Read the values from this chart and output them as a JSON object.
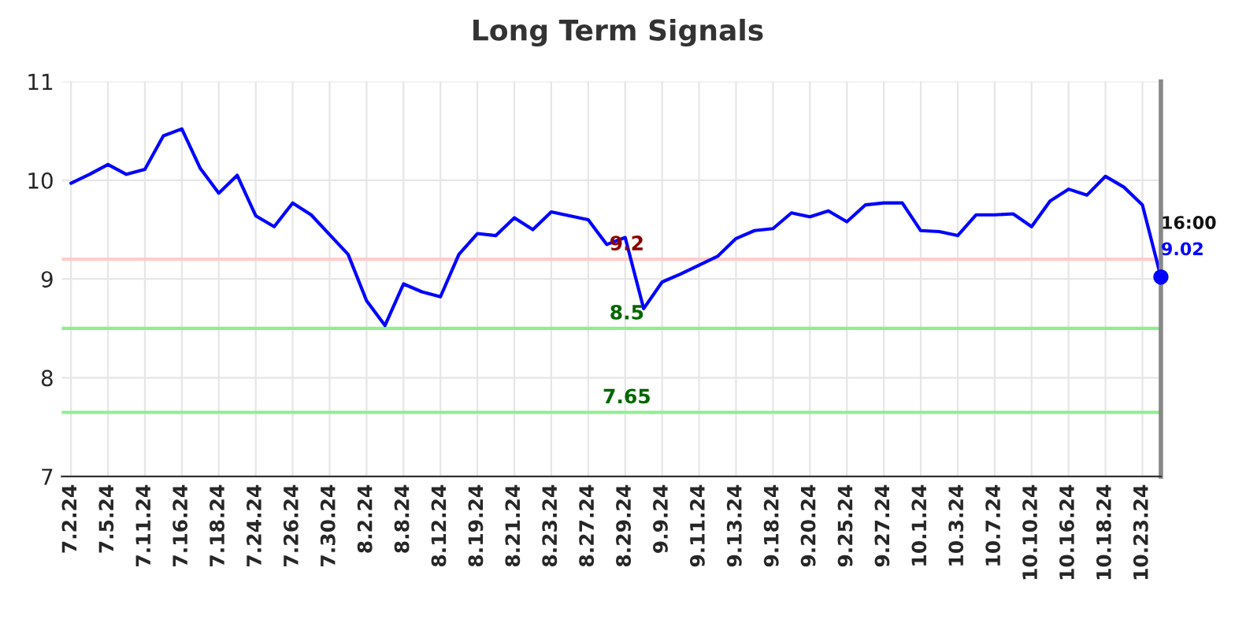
{
  "chart_data": {
    "type": "line",
    "title": "Long Term Signals",
    "categories": [
      "7.2.24",
      null,
      "7.5.24",
      null,
      "7.11.24",
      null,
      "7.16.24",
      null,
      "7.18.24",
      null,
      "7.24.24",
      null,
      "7.26.24",
      null,
      "7.30.24",
      null,
      "8.2.24",
      null,
      "8.8.24",
      null,
      "8.12.24",
      null,
      "8.19.24",
      null,
      "8.21.24",
      null,
      "8.23.24",
      null,
      "8.27.24",
      null,
      "8.29.24",
      null,
      "9.9.24",
      null,
      "9.11.24",
      null,
      "9.13.24",
      null,
      "9.18.24",
      null,
      "9.20.24",
      null,
      "9.25.24",
      null,
      "9.27.24",
      null,
      "10.1.24",
      null,
      "10.3.24",
      null,
      "10.7.24",
      null,
      "10.10.24",
      null,
      "10.16.24",
      null,
      "10.18.24",
      null,
      "10.23.24",
      null
    ],
    "series": [
      {
        "color": "#0000ff",
        "values": [
          9.97,
          10.06,
          10.16,
          10.06,
          10.11,
          10.45,
          10.52,
          10.12,
          9.87,
          10.05,
          9.64,
          9.53,
          9.77,
          9.65,
          9.45,
          9.25,
          8.78,
          8.53,
          8.95,
          8.87,
          8.82,
          9.25,
          9.46,
          9.44,
          9.62,
          9.5,
          9.68,
          9.64,
          9.6,
          9.35,
          9.42,
          8.7,
          8.97,
          9.05,
          9.14,
          9.23,
          9.41,
          9.49,
          9.51,
          9.67,
          9.63,
          9.69,
          9.58,
          9.75,
          9.77,
          9.77,
          9.49,
          9.48,
          9.44,
          9.65,
          9.65,
          9.66,
          9.53,
          9.79,
          9.91,
          9.85,
          10.04,
          9.93,
          9.75,
          9.02
        ]
      }
    ],
    "ylim": [
      7,
      11
    ],
    "yticks": [
      7,
      8,
      9,
      10,
      11
    ],
    "grid": true,
    "marker": "none",
    "line_style": "solid",
    "ref_lines": [
      {
        "axis": "y",
        "value": 9.2,
        "label": "9.2",
        "color": "#ffcccc"
      },
      {
        "axis": "y",
        "value": 8.5,
        "label": "8.5",
        "color": "#90ee90"
      },
      {
        "axis": "y",
        "value": 7.65,
        "label": "7.65",
        "color": "#90ee90"
      }
    ],
    "annotations": [
      "16:00",
      "9.02"
    ]
  }
}
